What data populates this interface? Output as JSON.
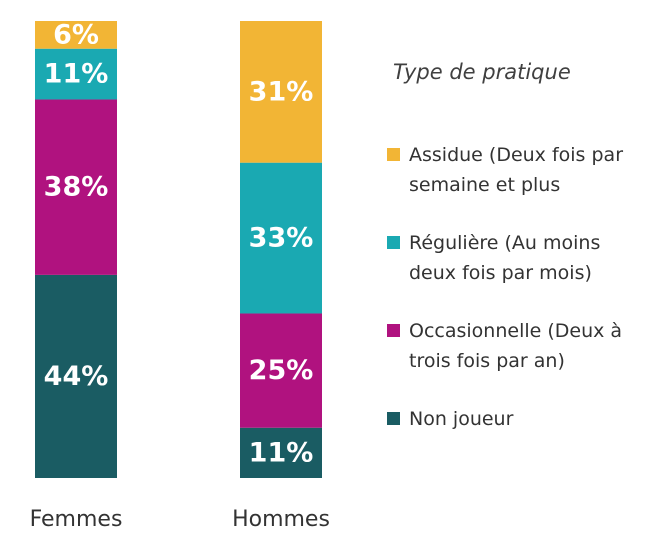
{
  "chart_data": {
    "type": "bar",
    "stacked": true,
    "percent_stacked": true,
    "categories": [
      "Femmes",
      "Hommes"
    ],
    "series": [
      {
        "name": "Non joueur",
        "color": "#1a5c63",
        "values": [
          44,
          11
        ],
        "labels": [
          "44%",
          "11%"
        ]
      },
      {
        "name": "Occasionnelle (Deux à trois fois par an)",
        "color": "#b0127f",
        "values": [
          38,
          25
        ],
        "labels": [
          "38%",
          "25%"
        ]
      },
      {
        "name": "Régulière (Au moins deux fois par mois)",
        "color": "#1aa9b2",
        "values": [
          11,
          33
        ],
        "labels": [
          "11%",
          "33%"
        ]
      },
      {
        "name": "Assidue (Deux fois par semaine et plus",
        "color": "#f2b535",
        "values": [
          6,
          31
        ],
        "labels": [
          "6%",
          "31%"
        ]
      }
    ],
    "legend_title": "Type de pratique",
    "legend_position": "right",
    "grid": false,
    "title": "",
    "xlabel": "",
    "ylabel": ""
  },
  "legend": {
    "title": "Type de pratique",
    "items": [
      {
        "label": "Assidue (Deux fois par\nsemaine et plus",
        "color": "#f2b535"
      },
      {
        "label": "Régulière (Au moins\ndeux fois par mois)",
        "color": "#1aa9b2"
      },
      {
        "label": "Occasionnelle (Deux à\ntrois fois par an)",
        "color": "#b0127f"
      },
      {
        "label": "Non joueur",
        "color": "#1a5c63"
      }
    ]
  }
}
